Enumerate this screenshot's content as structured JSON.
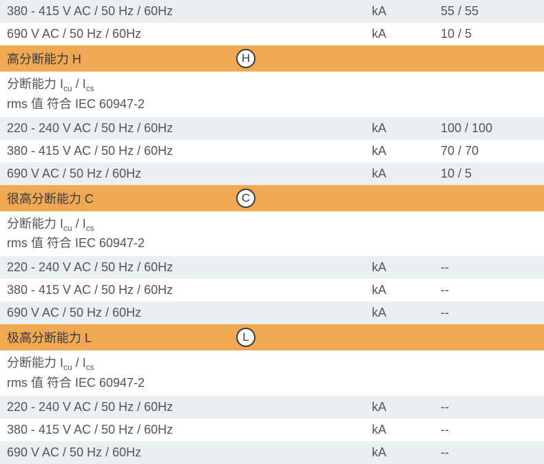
{
  "top_rows": [
    {
      "label": "380 - 415 V AC / 50 Hz / 60Hz",
      "unit": "kA",
      "value": "55 / 55",
      "bg": "light"
    },
    {
      "label": "690 V AC / 50 Hz / 60Hz",
      "unit": "kA",
      "value": "10 / 5",
      "bg": "white"
    }
  ],
  "sections": [
    {
      "title": "高分断能力 H",
      "badge": "H",
      "desc_prefix": "分断能力 I",
      "desc_sub1": "cu",
      "desc_mid": " /  I",
      "desc_sub2": "cs",
      "desc_line2": "rms 值 符合 IEC 60947-2",
      "rows": [
        {
          "label": "220 - 240 V AC / 50 Hz / 60Hz",
          "unit": "kA",
          "value": "100 / 100",
          "bg": "light"
        },
        {
          "label": "380 - 415 V AC / 50 Hz / 60Hz",
          "unit": "kA",
          "value": "70 / 70",
          "bg": "white"
        },
        {
          "label": "690 V AC / 50 Hz / 60Hz",
          "unit": "kA",
          "value": "10 / 5",
          "bg": "light"
        }
      ]
    },
    {
      "title": "很高分断能力 C",
      "badge": "C",
      "desc_prefix": "分断能力 I",
      "desc_sub1": "cu",
      "desc_mid": " /  I",
      "desc_sub2": "cs",
      "desc_line2": "rms 值 符合 IEC 60947-2",
      "rows": [
        {
          "label": "220 - 240 V AC / 50 Hz / 60Hz",
          "unit": "kA",
          "value": "--",
          "bg": "light"
        },
        {
          "label": "380 - 415 V AC / 50 Hz / 60Hz",
          "unit": "kA",
          "value": "--",
          "bg": "white"
        },
        {
          "label": "690 V AC / 50 Hz / 60Hz",
          "unit": "kA",
          "value": "--",
          "bg": "light"
        }
      ]
    },
    {
      "title": "极高分断能力 L",
      "badge": "L",
      "desc_prefix": "分断能力 I",
      "desc_sub1": "cu",
      "desc_mid": " /  I",
      "desc_sub2": "cs",
      "desc_line2": "rms 值 符合 IEC 60947-2",
      "rows": [
        {
          "label": "220 - 240 V AC / 50 Hz / 60Hz",
          "unit": "kA",
          "value": "--",
          "bg": "light"
        },
        {
          "label": "380 - 415 V AC / 50 Hz / 60Hz",
          "unit": "kA",
          "value": "--",
          "bg": "white"
        },
        {
          "label": "690 V AC / 50 Hz / 60Hz",
          "unit": "kA",
          "value": "--",
          "bg": "light"
        }
      ]
    }
  ],
  "styles": {
    "bg_light": "#eaeff2",
    "bg_white": "#ffffff",
    "bg_orange": "#f0a952",
    "text_color": "#555555",
    "header_text_color": "#3a3a3a",
    "font_size": 18,
    "badge_border": "#3a3a3a"
  }
}
